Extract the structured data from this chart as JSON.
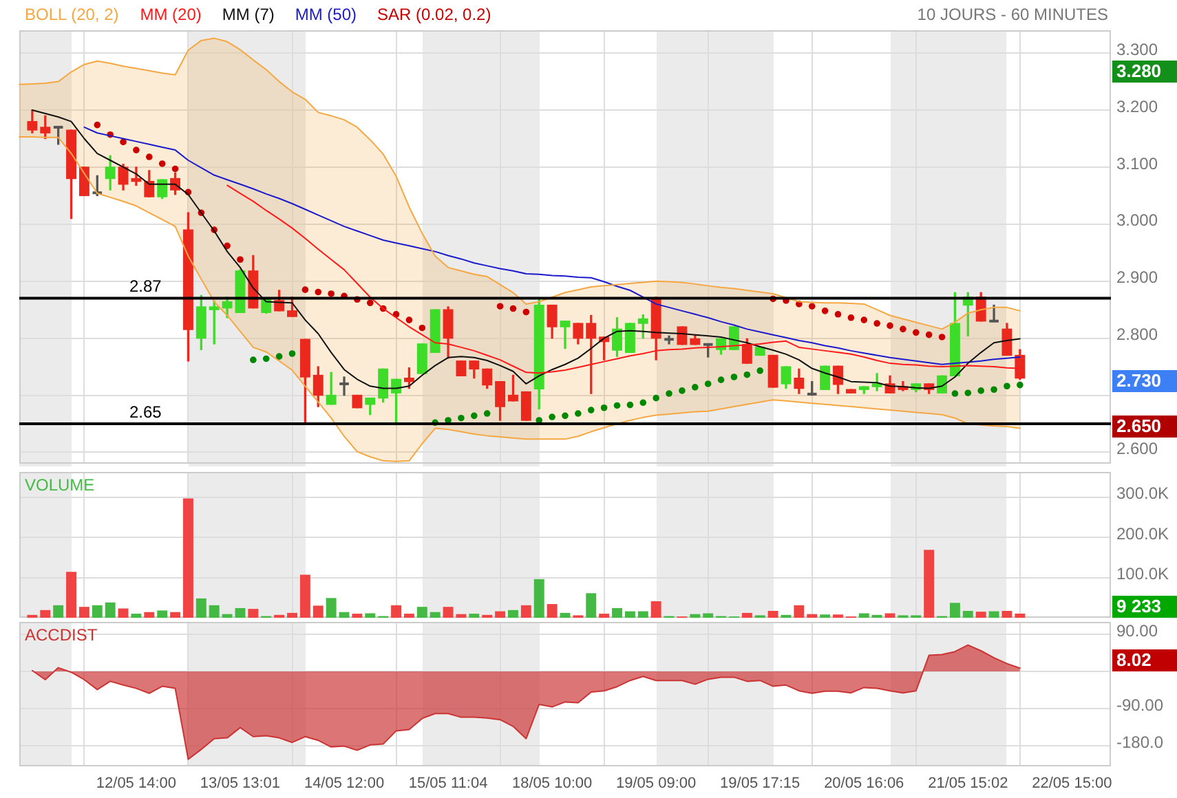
{
  "chart_data": [
    {
      "type": "candlestick",
      "subtitle": "10 JOURS - 60 MINUTES",
      "categories": [
        null,
        null,
        null,
        null,
        null,
        null,
        null,
        null,
        null,
        null,
        null,
        null,
        null,
        null,
        null,
        null,
        null,
        null,
        null,
        null,
        null,
        null,
        null,
        null,
        null,
        null,
        null,
        null,
        null,
        null,
        null,
        null,
        null,
        null,
        null,
        null,
        null,
        null,
        null,
        null,
        null,
        null,
        null,
        null,
        null,
        null,
        null,
        null,
        null,
        null,
        null,
        null,
        null,
        null,
        null,
        null,
        null,
        null,
        null,
        null,
        null,
        null,
        null,
        null,
        null,
        null,
        null,
        null,
        null,
        null,
        null,
        null,
        null,
        null,
        null,
        null,
        null,
        null,
        null,
        null,
        null,
        null,
        null,
        null,
        null
      ],
      "ohlc": [
        null,
        [
          3.18,
          3.2,
          3.16,
          3.165
        ],
        [
          3.17,
          3.19,
          3.15,
          3.16
        ],
        [
          3.17,
          3.17,
          3.14,
          3.17
        ],
        [
          3.165,
          3.165,
          3.01,
          3.08
        ],
        [
          3.1,
          3.1,
          3.05,
          3.05
        ],
        [
          3.055,
          3.085,
          3.05,
          3.055
        ],
        [
          3.08,
          3.12,
          3.06,
          3.1
        ],
        [
          3.1,
          3.105,
          3.06,
          3.07
        ],
        [
          3.08,
          3.1,
          3.068,
          3.075
        ],
        [
          3.075,
          3.094,
          3.048,
          3.048
        ],
        [
          3.048,
          3.078,
          3.045,
          3.078
        ],
        [
          3.08,
          3.09,
          3.052,
          3.06
        ],
        [
          2.99,
          3.02,
          2.76,
          2.815
        ],
        [
          2.8,
          2.875,
          2.78,
          2.855
        ],
        [
          2.85,
          2.865,
          2.79,
          2.855
        ],
        [
          2.853,
          2.872,
          2.836,
          2.864
        ],
        [
          2.845,
          2.92,
          2.845,
          2.918
        ],
        [
          2.918,
          2.945,
          2.853,
          2.853
        ],
        [
          2.845,
          2.87,
          2.844,
          2.868
        ],
        [
          2.866,
          2.884,
          2.848,
          2.848
        ],
        [
          2.848,
          2.872,
          2.838,
          2.838
        ],
        [
          2.798,
          2.798,
          2.652,
          2.732
        ],
        [
          2.735,
          2.75,
          2.68,
          2.7
        ],
        [
          2.684,
          2.74,
          2.684,
          2.7
        ],
        [
          2.72,
          2.732,
          2.7,
          2.72
        ],
        [
          2.7,
          2.7,
          2.678,
          2.678
        ],
        [
          2.684,
          2.695,
          2.666,
          2.695
        ],
        [
          2.695,
          2.746,
          2.688,
          2.746
        ],
        [
          2.704,
          2.728,
          2.648,
          2.728
        ],
        [
          2.73,
          2.748,
          2.712,
          2.724
        ],
        [
          2.738,
          2.79,
          2.738,
          2.79
        ],
        [
          2.775,
          2.85,
          2.775,
          2.85
        ],
        [
          2.85,
          2.855,
          2.765,
          2.8
        ],
        [
          2.76,
          2.76,
          2.734,
          2.734
        ],
        [
          2.76,
          2.76,
          2.73,
          2.746
        ],
        [
          2.746,
          2.746,
          2.712,
          2.718
        ],
        [
          2.724,
          2.724,
          2.656,
          2.68
        ],
        [
          2.7,
          2.735,
          2.69,
          2.69
        ],
        [
          2.706,
          2.706,
          2.656,
          2.656
        ],
        [
          2.711,
          2.868,
          2.676,
          2.858
        ],
        [
          2.858,
          2.858,
          2.8,
          2.82
        ],
        [
          2.82,
          2.83,
          2.782,
          2.83
        ],
        [
          2.826,
          2.826,
          2.79,
          2.8
        ],
        [
          2.826,
          2.84,
          2.703,
          2.8
        ],
        [
          2.802,
          2.802,
          2.762,
          2.794
        ],
        [
          2.779,
          2.836,
          2.768,
          2.816
        ],
        [
          2.775,
          2.826,
          2.775,
          2.826
        ],
        [
          2.826,
          2.841,
          2.8,
          2.834
        ],
        [
          2.868,
          2.872,
          2.762,
          2.8
        ],
        [
          2.798,
          2.804,
          2.79,
          2.798
        ],
        [
          2.82,
          2.82,
          2.789,
          2.789
        ],
        [
          2.799,
          2.806,
          2.789,
          2.789
        ],
        [
          2.789,
          2.789,
          2.767,
          2.789
        ],
        [
          2.78,
          2.799,
          2.772,
          2.799
        ],
        [
          2.78,
          2.82,
          2.78,
          2.82
        ],
        [
          2.789,
          2.799,
          2.756,
          2.756
        ],
        [
          2.77,
          2.784,
          2.77,
          2.784
        ],
        [
          2.77,
          2.77,
          2.714,
          2.714
        ],
        [
          2.72,
          2.75,
          2.712,
          2.75
        ],
        [
          2.73,
          2.746,
          2.703,
          2.712
        ],
        [
          2.702,
          2.724,
          2.7,
          2.702
        ],
        [
          2.71,
          2.751,
          2.71,
          2.751
        ],
        [
          2.751,
          2.751,
          2.703,
          2.719
        ],
        [
          2.71,
          2.71,
          2.704,
          2.704
        ],
        [
          2.71,
          2.715,
          2.703,
          2.715
        ],
        [
          2.715,
          2.738,
          2.708,
          2.72
        ],
        [
          2.72,
          2.734,
          2.704,
          2.704
        ],
        [
          2.715,
          2.724,
          2.708,
          2.71
        ],
        [
          2.71,
          2.72,
          2.706,
          2.72
        ],
        [
          2.72,
          2.72,
          2.703,
          2.71
        ],
        [
          2.704,
          2.734,
          2.704,
          2.734
        ],
        [
          2.734,
          2.88,
          2.734,
          2.826
        ],
        [
          2.858,
          2.88,
          2.804,
          2.872
        ],
        [
          2.872,
          2.88,
          2.83,
          2.83
        ],
        [
          2.83,
          2.858,
          2.83,
          2.83
        ],
        [
          2.816,
          2.826,
          2.77,
          2.77
        ],
        [
          2.77,
          2.78,
          2.728,
          2.73
        ],
        null,
        null,
        null,
        null,
        null,
        null,
        null
      ],
      "colors": [
        null,
        "#eb281e",
        "#eb281e",
        "#555555",
        "#eb281e",
        "#eb281e",
        "#555555",
        "#3cdc28",
        "#eb281e",
        "#eb281e",
        "#eb281e",
        "#3cdc28",
        "#eb281e",
        "#eb281e",
        "#3cdc28",
        "#3cdc28",
        "#3cdc28",
        "#3cdc28",
        "#eb281e",
        "#3cdc28",
        "#eb281e",
        "#eb281e",
        "#eb281e",
        "#eb281e",
        "#3cdc28",
        "#555555",
        "#eb281e",
        "#3cdc28",
        "#3cdc28",
        "#3cdc28",
        "#eb281e",
        "#3cdc28",
        "#3cdc28",
        "#eb281e",
        "#eb281e",
        "#eb281e",
        "#eb281e",
        "#eb281e",
        "#eb281e",
        "#eb281e",
        "#3cdc28",
        "#eb281e",
        "#3cdc28",
        "#eb281e",
        "#eb281e",
        "#eb281e",
        "#3cdc28",
        "#3cdc28",
        "#3cdc28",
        "#eb281e",
        "#555555",
        "#eb281e",
        "#eb281e",
        "#555555",
        "#3cdc28",
        "#3cdc28",
        "#eb281e",
        "#3cdc28",
        "#eb281e",
        "#3cdc28",
        "#eb281e",
        "#555555",
        "#3cdc28",
        "#eb281e",
        "#eb281e",
        "#3cdc28",
        "#3cdc28",
        "#eb281e",
        "#eb281e",
        "#3cdc28",
        "#eb281e",
        "#3cdc28",
        "#3cdc28",
        "#3cdc28",
        "#eb281e",
        "#555555",
        "#eb281e",
        "#eb281e",
        null,
        null,
        null,
        null,
        null,
        null,
        null
      ],
      "series": [
        {
          "name": "BOLL (20, 2)",
          "type": "line",
          "color": "#f5a742",
          "values": [
            3.245,
            3.246,
            3.247,
            3.25,
            3.267,
            3.28,
            3.286,
            3.282,
            3.277,
            3.273,
            3.269,
            3.265,
            3.262,
            3.305,
            3.322,
            3.326,
            3.32,
            3.306,
            3.288,
            3.271,
            3.25,
            3.232,
            3.219,
            3.196,
            3.19,
            3.183,
            3.17,
            3.148,
            3.123,
            3.084,
            3.03,
            2.984,
            2.944,
            2.924,
            2.918,
            2.912,
            2.908,
            2.894,
            2.88,
            2.86,
            2.864,
            2.872,
            2.88,
            2.885,
            2.89,
            2.892,
            2.894,
            2.896,
            2.898,
            2.9,
            2.899,
            2.898,
            2.895,
            2.892,
            2.889,
            2.887,
            2.884,
            2.881,
            2.878,
            2.871,
            2.864,
            2.863,
            2.862,
            2.862,
            2.861,
            2.86,
            2.85,
            2.84,
            2.834,
            2.828,
            2.822,
            2.816,
            2.828,
            2.844,
            2.85,
            2.854,
            2.854,
            2.848,
            null,
            null,
            null,
            null,
            null,
            null,
            null
          ],
          "upper": [
            3.245,
            3.246,
            3.247,
            3.25,
            3.267,
            3.28,
            3.286,
            3.282,
            3.277,
            3.273,
            3.269,
            3.265,
            3.262,
            3.305,
            3.322,
            3.326,
            3.32,
            3.306,
            3.288,
            3.271,
            3.25,
            3.232,
            3.219,
            3.196,
            3.19,
            3.183,
            3.17,
            3.148,
            3.123,
            3.084,
            3.03,
            2.984,
            2.944,
            2.924,
            2.918,
            2.912,
            2.908,
            2.894,
            2.88,
            2.86,
            2.864,
            2.872,
            2.88,
            2.885,
            2.89,
            2.892,
            2.894,
            2.896,
            2.898,
            2.9,
            2.899,
            2.898,
            2.895,
            2.892,
            2.889,
            2.887,
            2.884,
            2.881,
            2.878,
            2.871,
            2.864,
            2.863,
            2.862,
            2.862,
            2.861,
            2.86,
            2.85,
            2.84,
            2.834,
            2.828,
            2.822,
            2.816,
            2.828,
            2.844,
            2.85,
            2.854,
            2.854,
            2.848,
            null,
            null,
            null,
            null,
            null,
            null,
            null
          ],
          "lower": [
            3.153,
            3.153,
            3.152,
            3.152,
            3.124,
            3.089,
            3.054,
            3.047,
            3.04,
            3.032,
            3.02,
            3.008,
            2.996,
            2.944,
            2.904,
            2.864,
            2.84,
            2.812,
            2.784,
            2.776,
            2.76,
            2.744,
            2.716,
            2.688,
            2.66,
            2.628,
            2.601,
            2.592,
            2.585,
            2.584,
            2.585,
            2.615,
            2.642,
            2.64,
            2.636,
            2.632,
            2.629,
            2.627,
            2.625,
            2.623,
            2.623,
            2.623,
            2.623,
            2.628,
            2.636,
            2.643,
            2.65,
            2.656,
            2.661,
            2.665,
            2.667,
            2.669,
            2.671,
            2.672,
            2.676,
            2.68,
            2.684,
            2.688,
            2.692,
            2.69,
            2.688,
            2.686,
            2.684,
            2.682,
            2.68,
            2.678,
            2.676,
            2.674,
            2.672,
            2.67,
            2.668,
            2.666,
            2.66,
            2.65,
            2.648,
            2.646,
            2.645,
            2.642,
            null,
            null,
            null,
            null,
            null,
            null,
            null
          ]
        },
        {
          "type": "line",
          "color": "#f5a742",
          "values": [
            3.153,
            3.153,
            3.152,
            3.152,
            3.124,
            3.089,
            3.054,
            3.047,
            3.04,
            3.032,
            3.02,
            3.008,
            2.996,
            2.944,
            2.904,
            2.864,
            2.84,
            2.812,
            2.784,
            2.776,
            2.76,
            2.744,
            2.716,
            2.688,
            2.66,
            2.628,
            2.601,
            2.592,
            2.585,
            2.584,
            2.585,
            2.615,
            2.642,
            2.64,
            2.636,
            2.632,
            2.629,
            2.627,
            2.625,
            2.623,
            2.623,
            2.623,
            2.623,
            2.628,
            2.636,
            2.643,
            2.65,
            2.656,
            2.661,
            2.665,
            2.667,
            2.669,
            2.671,
            2.672,
            2.676,
            2.68,
            2.684,
            2.688,
            2.692,
            2.69,
            2.688,
            2.686,
            2.684,
            2.682,
            2.68,
            2.678,
            2.676,
            2.674,
            2.672,
            2.67,
            2.668,
            2.666,
            2.66,
            2.65,
            2.648,
            2.646,
            2.645,
            2.642,
            null,
            null,
            null,
            null,
            null,
            null,
            null
          ]
        },
        {
          "name": "MM (20)",
          "type": "line",
          "color": "#ff1a1a",
          "values": [
            null,
            null,
            null,
            null,
            null,
            null,
            null,
            null,
            null,
            null,
            null,
            null,
            null,
            null,
            null,
            null,
            3.068,
            3.054,
            3.04,
            3.024,
            3.009,
            2.993,
            2.975,
            2.956,
            2.938,
            2.92,
            2.896,
            2.872,
            2.852,
            2.836,
            2.82,
            2.806,
            2.792,
            2.79,
            2.784,
            2.778,
            2.77,
            2.762,
            2.751,
            2.74,
            2.739,
            2.741,
            2.744,
            2.749,
            2.754,
            2.759,
            2.764,
            2.769,
            2.773,
            2.778,
            2.78,
            2.781,
            2.783,
            2.784,
            2.785,
            2.787,
            2.788,
            2.79,
            2.793,
            2.795,
            2.784,
            2.781,
            2.778,
            2.775,
            2.772,
            2.767,
            2.761,
            2.756,
            2.754,
            2.753,
            2.751,
            2.75,
            2.751,
            2.752,
            2.751,
            2.75,
            2.748,
            2.747,
            null,
            null,
            null,
            null,
            null,
            null,
            null
          ]
        },
        {
          "name": "MM (7)",
          "type": "line",
          "color": "#111111",
          "values": [
            null,
            3.2,
            3.194,
            3.188,
            3.18,
            3.15,
            3.124,
            3.112,
            3.1,
            3.088,
            3.07,
            3.07,
            3.07,
            3.052,
            3.02,
            2.988,
            2.952,
            2.924,
            2.888,
            2.864,
            2.863,
            2.862,
            2.832,
            2.808,
            2.775,
            2.745,
            2.728,
            2.716,
            2.712,
            2.712,
            2.716,
            2.735,
            2.752,
            2.766,
            2.768,
            2.766,
            2.761,
            2.752,
            2.742,
            2.72,
            2.734,
            2.745,
            2.754,
            2.765,
            2.782,
            2.8,
            2.812,
            2.813,
            2.812,
            2.81,
            2.809,
            2.808,
            2.806,
            2.804,
            2.802,
            2.797,
            2.792,
            2.785,
            2.779,
            2.772,
            2.762,
            2.747,
            2.739,
            2.732,
            2.724,
            2.723,
            2.722,
            2.716,
            2.715,
            2.713,
            2.712,
            2.716,
            2.732,
            2.756,
            2.775,
            2.792,
            2.796,
            2.799,
            null,
            null,
            null,
            null,
            null,
            null,
            null
          ]
        },
        {
          "name": "MM (50)",
          "type": "line",
          "color": "#1a1acc",
          "values": [
            null,
            null,
            null,
            null,
            null,
            3.17,
            3.16,
            3.155,
            3.15,
            3.145,
            3.14,
            3.135,
            3.13,
            3.112,
            3.099,
            3.086,
            3.078,
            3.07,
            3.062,
            3.053,
            3.045,
            3.036,
            3.026,
            3.016,
            3.006,
            2.996,
            2.988,
            2.98,
            2.972,
            2.967,
            2.962,
            2.957,
            2.952,
            2.945,
            2.939,
            2.932,
            2.927,
            2.922,
            2.918,
            2.913,
            2.912,
            2.91,
            2.909,
            2.907,
            2.906,
            2.899,
            2.891,
            2.884,
            2.872,
            2.86,
            2.854,
            2.848,
            2.842,
            2.836,
            2.829,
            2.823,
            2.816,
            2.811,
            2.806,
            2.801,
            2.796,
            2.792,
            2.787,
            2.783,
            2.778,
            2.774,
            2.77,
            2.766,
            2.763,
            2.76,
            2.757,
            2.754,
            2.756,
            2.758,
            2.76,
            2.763,
            2.765,
            2.767,
            null,
            null,
            null,
            null,
            null,
            null,
            null
          ]
        },
        {
          "name": "SAR (0.02, 0.2)",
          "type": "scatter",
          "color": "#cc0000",
          "values": [
            null,
            null,
            null,
            null,
            null,
            null,
            3.174,
            3.157,
            3.144,
            3.13,
            3.118,
            3.106,
            3.097,
            3.056,
            3.02,
            2.99,
            2.962,
            2.938,
            2.762,
            2.764,
            2.768,
            2.773,
            2.885,
            2.881,
            2.878,
            2.874,
            2.868,
            2.862,
            2.852,
            2.842,
            2.832,
            2.818,
            2.652,
            2.656,
            2.66,
            2.664,
            2.668,
            2.856,
            2.852,
            2.846,
            2.656,
            2.662,
            2.664,
            2.668,
            2.674,
            2.678,
            2.682,
            2.683,
            2.687,
            2.695,
            2.703,
            2.708,
            2.714,
            2.72,
            2.727,
            2.732,
            2.736,
            2.743,
            2.869,
            2.866,
            2.86,
            2.856,
            2.848,
            2.842,
            2.836,
            2.832,
            2.826,
            2.822,
            2.816,
            2.81,
            2.806,
            2.802,
            2.703,
            2.704,
            2.708,
            2.71,
            2.716,
            2.718,
            null,
            null,
            null,
            null,
            null,
            null,
            null
          ],
          "colors": [
            null,
            null,
            null,
            null,
            null,
            null,
            "#cc0000",
            "#cc0000",
            "#cc0000",
            "#cc0000",
            "#cc0000",
            "#cc0000",
            "#cc0000",
            "#cc0000",
            "#cc0000",
            "#cc0000",
            "#cc0000",
            "#cc0000",
            "#008800",
            "#008800",
            "#008800",
            "#008800",
            "#cc0000",
            "#cc0000",
            "#cc0000",
            "#cc0000",
            "#cc0000",
            "#cc0000",
            "#cc0000",
            "#cc0000",
            "#cc0000",
            "#cc0000",
            "#008800",
            "#008800",
            "#008800",
            "#008800",
            "#008800",
            "#cc0000",
            "#cc0000",
            "#cc0000",
            "#008800",
            "#008800",
            "#008800",
            "#008800",
            "#008800",
            "#008800",
            "#008800",
            "#008800",
            "#008800",
            "#008800",
            "#008800",
            "#008800",
            "#008800",
            "#008800",
            "#008800",
            "#008800",
            "#008800",
            "#008800",
            "#cc0000",
            "#cc0000",
            "#cc0000",
            "#cc0000",
            "#cc0000",
            "#cc0000",
            "#cc0000",
            "#cc0000",
            "#cc0000",
            "#cc0000",
            "#cc0000",
            "#cc0000",
            "#cc0000",
            "#cc0000",
            "#008800",
            "#008800",
            "#008800",
            "#008800",
            "#008800",
            "#008800",
            null,
            null,
            null,
            null,
            null,
            null,
            null
          ]
        }
      ],
      "ylim": [
        2.58,
        3.34
      ],
      "yticks": [
        {
          "value": 2.6,
          "label": "2.600"
        },
        {
          "value": 2.7,
          "label": null
        },
        {
          "value": 2.8,
          "label": "2.800"
        },
        {
          "value": 2.9,
          "label": "2.900"
        },
        {
          "value": 3.0,
          "label": "3.000"
        },
        {
          "value": 3.1,
          "label": "3.100"
        },
        {
          "value": 3.2,
          "label": "3.200"
        },
        {
          "value": 3.3,
          "label": "3.300"
        }
      ],
      "tick_labels": "y",
      "grid": true,
      "legend": "top left",
      "ref_lines": [
        {
          "axis": "y",
          "value": 2.87,
          "label": "2.87",
          "color": "#000000"
        },
        {
          "axis": "y",
          "value": 2.65,
          "label": "2.65",
          "color": "#000000"
        }
      ],
      "annotations": [
        "3.280",
        "2.730",
        "2.650"
      ]
    },
    {
      "type": "bar",
      "categories": [
        null,
        null,
        null,
        null,
        null,
        null,
        null,
        null,
        null,
        null,
        null,
        null,
        null,
        null,
        null,
        null,
        null,
        null,
        null,
        null,
        null,
        null,
        null,
        null,
        null,
        null,
        null,
        null,
        null,
        null,
        null,
        null,
        null,
        null,
        null,
        null,
        null,
        null,
        null,
        null,
        null,
        null,
        null,
        null,
        null,
        null,
        null,
        null,
        null,
        null,
        null,
        null,
        null,
        null,
        null,
        null,
        null,
        null,
        null,
        null,
        null,
        null,
        null,
        null,
        null,
        null,
        null,
        null,
        null,
        null,
        null,
        null,
        null,
        null,
        null,
        null,
        null,
        null,
        null,
        null,
        null,
        null,
        null,
        null,
        null
      ],
      "series": [
        {
          "name": "VOLUME",
          "color": "#44bb44",
          "values": [
            null,
            6000,
            18000,
            30000,
            113000,
            26000,
            30000,
            37000,
            22000,
            9000,
            13000,
            17000,
            13000,
            296000,
            47000,
            30000,
            8000,
            23000,
            21000,
            3000,
            6000,
            11000,
            106000,
            29000,
            48000,
            13000,
            9000,
            10000,
            3000,
            30000,
            9000,
            26000,
            13000,
            26000,
            8000,
            9000,
            6000,
            15000,
            18000,
            30000,
            95000,
            33000,
            11000,
            5000,
            60000,
            9000,
            23000,
            15000,
            15000,
            40000,
            3000,
            2000,
            8000,
            10000,
            3000,
            2000,
            11000,
            5000,
            16000,
            6000,
            30000,
            8000,
            7000,
            7000,
            2000,
            10000,
            6000,
            10000,
            5000,
            5000,
            168000,
            3000,
            36000,
            16000,
            14000,
            15000,
            16000,
            9233,
            null,
            null,
            null,
            null,
            null,
            null,
            null
          ],
          "colors": [
            null,
            "#f04444",
            "#f04444",
            "#44b944",
            "#f04444",
            "#f04444",
            "#44b944",
            "#44b944",
            "#f04444",
            "#44b944",
            "#f04444",
            "#44b944",
            "#f04444",
            "#f04444",
            "#44b944",
            "#44b944",
            "#44b944",
            "#44b944",
            "#f04444",
            "#44b944",
            "#f04444",
            "#f04444",
            "#f04444",
            "#f04444",
            "#44b944",
            "#44b944",
            "#f04444",
            "#44b944",
            "#44b944",
            "#f04444",
            "#f04444",
            "#44b944",
            "#44b944",
            "#f04444",
            "#f04444",
            "#44b944",
            "#f04444",
            "#f04444",
            "#44b944",
            "#f04444",
            "#44b944",
            "#f04444",
            "#44b944",
            "#f04444",
            "#44b944",
            "#f04444",
            "#44b944",
            "#44b944",
            "#44b944",
            "#f04444",
            "#44b944",
            "#f04444",
            "#44b944",
            "#44b944",
            "#44b944",
            "#44b944",
            "#f04444",
            "#44b944",
            "#f04444",
            "#44b944",
            "#f04444",
            "#f04444",
            "#44b944",
            "#f04444",
            "#f04444",
            "#44b944",
            "#44b944",
            "#f04444",
            "#44b944",
            "#44b944",
            "#f04444",
            "#44b944",
            "#44b944",
            "#44b944",
            "#f04444",
            "#44b944",
            "#f04444",
            "#f04444",
            null,
            null,
            null,
            null,
            null,
            null,
            null
          ]
        }
      ],
      "ylim": [
        0,
        363000
      ],
      "yticks": [
        {
          "value": 100000,
          "label": "100.0K"
        },
        {
          "value": 200000,
          "label": "200.0K"
        },
        {
          "value": 300000,
          "label": "300.0K"
        }
      ],
      "tick_labels": "y",
      "grid": true,
      "legend": "top left",
      "annotations": [
        "9 233"
      ]
    },
    {
      "type": "area",
      "categories": [
        null,
        null,
        null,
        null,
        null,
        null,
        null,
        null,
        null,
        "12/05 14:00",
        null,
        null,
        null,
        null,
        null,
        null,
        null,
        "13/05 13:01",
        null,
        null,
        null,
        null,
        null,
        null,
        null,
        "14/05 12:00",
        null,
        null,
        null,
        null,
        null,
        null,
        null,
        "15/05 11:04",
        null,
        null,
        null,
        null,
        null,
        null,
        null,
        "18/05 10:00",
        null,
        null,
        null,
        null,
        null,
        null,
        null,
        "19/05 09:00",
        null,
        null,
        null,
        null,
        null,
        null,
        null,
        "19/05 17:15",
        null,
        null,
        null,
        null,
        null,
        null,
        null,
        "20/05 16:06",
        null,
        null,
        null,
        null,
        null,
        null,
        null,
        "21/05 15:02",
        null,
        null,
        null,
        null,
        null,
        null,
        null,
        "22/05 15:00",
        null,
        null,
        null
      ],
      "series": [
        {
          "name": "ACCDIST",
          "color": "#cc3333",
          "values": [
            null,
            2,
            -20,
            9,
            -2,
            -20,
            -44,
            -24,
            -33,
            -41,
            -53,
            -36,
            -41,
            -213,
            -189,
            -163,
            -161,
            -136,
            -158,
            -156,
            -161,
            -172,
            -158,
            -167,
            -183,
            -181,
            -191,
            -178,
            -176,
            -144,
            -141,
            -114,
            -102,
            -102,
            -111,
            -111,
            -113,
            -117,
            -133,
            -163,
            -80,
            -86,
            -74,
            -76,
            -50,
            -47,
            -37,
            -22,
            -12,
            -22,
            -22,
            -22,
            -31,
            -19,
            -14,
            -14,
            -24,
            -22,
            -36,
            -33,
            -47,
            -53,
            -48,
            -48,
            -52,
            -39,
            -41,
            -47,
            -52,
            -47,
            39,
            41,
            48,
            64,
            50,
            33,
            19,
            8.02,
            null,
            null,
            null,
            null,
            null,
            null,
            null
          ]
        }
      ],
      "ylim": [
        -230,
        120
      ],
      "yticks": [
        {
          "value": -180,
          "label": "-180.0"
        },
        {
          "value": -90,
          "label": "-90.00"
        },
        {
          "value": 0,
          "label": null
        },
        {
          "value": 90,
          "label": "90.00"
        }
      ],
      "grid": true,
      "legend": "top left",
      "annotations": [
        "8.02"
      ]
    }
  ]
}
